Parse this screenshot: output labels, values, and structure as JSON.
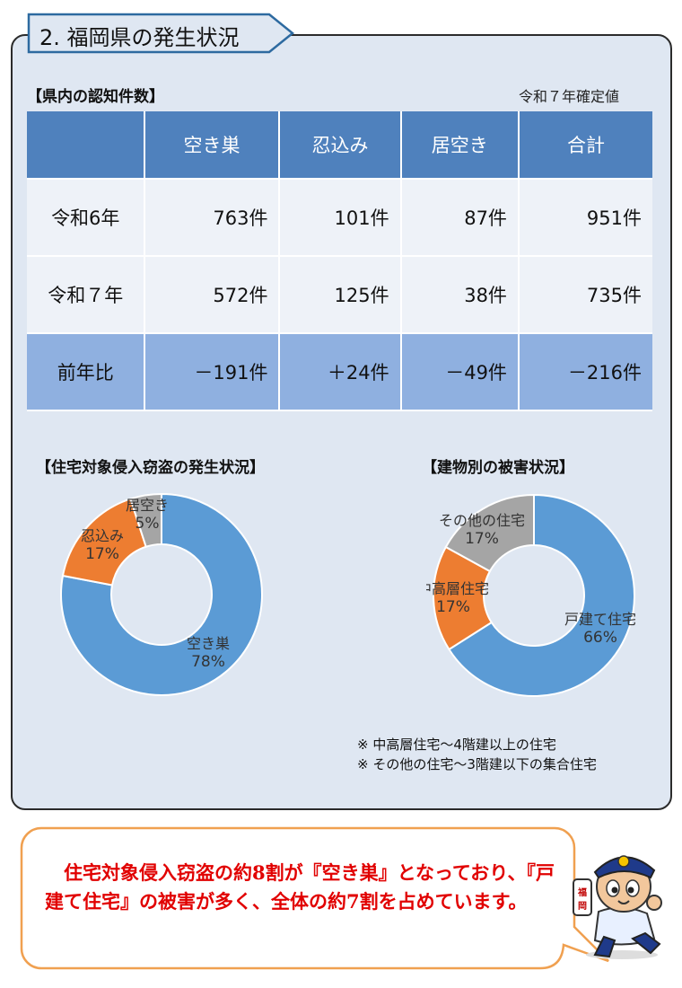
{
  "section": {
    "title": "2. 福岡県の発生状況"
  },
  "table": {
    "label": "【県内の認知件数】",
    "note": "令和７年確定値",
    "headers": [
      "",
      "空き巣",
      "忍込み",
      "居空き",
      "合計"
    ],
    "rows": [
      [
        "令和6年",
        "763件",
        "101件",
        "87件",
        "951件"
      ],
      [
        "令和７年",
        "572件",
        "125件",
        "38件",
        "735件"
      ],
      [
        "前年比",
        "－191件",
        "＋24件",
        "－49件",
        "－216件"
      ]
    ]
  },
  "chart_data": [
    {
      "type": "pie",
      "title": "【住宅対象侵入窃盗の発生状況】",
      "categories": [
        "空き巣",
        "忍込み",
        "居空き"
      ],
      "values": [
        78,
        17,
        5
      ],
      "unit": "%",
      "colors": [
        "#5b9bd5",
        "#ed7d31",
        "#a5a5a5"
      ]
    },
    {
      "type": "pie",
      "title": "【建物別の被害状況】",
      "categories": [
        "戸建て住宅",
        "中高層住宅",
        "その他の住宅"
      ],
      "values": [
        66,
        17,
        17
      ],
      "unit": "%",
      "colors": [
        "#5b9bd5",
        "#ed7d31",
        "#a5a5a5"
      ]
    }
  ],
  "footnotes": [
    "※ 中高層住宅～4階建以上の住宅",
    "※ その他の住宅～3階建以下の集合住宅"
  ],
  "callout": {
    "text": "　住宅対象侵入窃盗の約8割が『空き巣』となっており、『戸建て住宅』の被害が多く、全体の約7割を占めています。",
    "color": "#e10000",
    "border_color": "#f0a050"
  },
  "mascot": {
    "badge_text": "福岡",
    "icon": "police-mascot"
  }
}
